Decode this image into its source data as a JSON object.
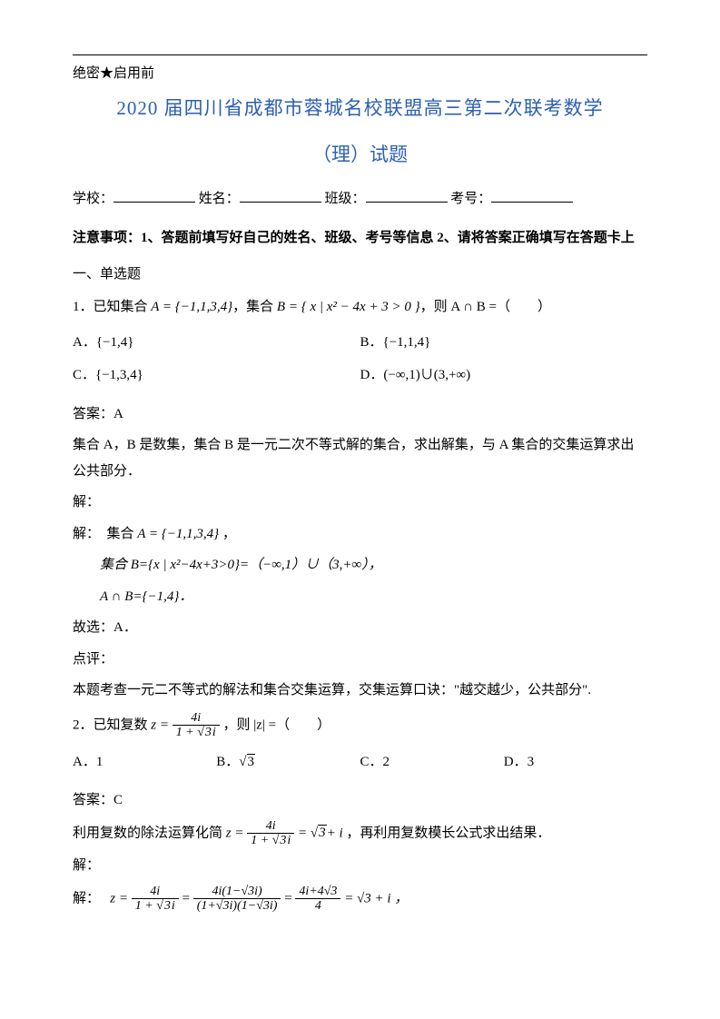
{
  "colors": {
    "title": "#2d5fb3",
    "text": "#000000",
    "background": "#ffffff"
  },
  "header": {
    "secret": "绝密★启用前",
    "title": "2020 届四川省成都市蓉城名校联盟高三第二次联考数学",
    "subtitle": "（理）试题"
  },
  "info": {
    "school_label": "学校：",
    "name_label": "姓名：",
    "class_label": "班级：",
    "number_label": "考号："
  },
  "notice": "注意事项：1、答题前填写好自己的姓名、班级、考号等信息  2、请将答案正确填写在答题卡上",
  "section1": {
    "heading": "一、单选题"
  },
  "q1": {
    "stem_pre": "1．已知集合 ",
    "setA": "A = {−1,1,3,4}",
    "mid1": "，集合 ",
    "setB": "B = { x | x² − 4x + 3 > 0 }",
    "mid2": "，则 A ∩ B =（　　）",
    "optA": "A．{−1,4}",
    "optB": "B．{−1,1,4}",
    "optC": "C．{−1,3,4}",
    "optD": "D．(−∞,1)∪(3,+∞)",
    "answer": "答案：A",
    "expl1": "集合 A，B 是数集，集合 B 是一元二次不等式解的集合，求出解集，与 A 集合的交集运算求出公共部分．",
    "solve_label": "解：",
    "solve1_pre": "解：　集合 ",
    "solve1_A": "A = {−1,1,3,4}",
    "solve1_post": " ，",
    "solve2": "集合 B={x | x²−4x+3>0}=（−∞,1）∪（3,+∞），",
    "solve3": "A ∩ B={−1,4}．",
    "solve4": "故选：A．",
    "dp_label": "点评：",
    "dp_text": "本题考查一元二不等式的解法和集合交集运算，交集运算口诀：\"越交越少，公共部分\"."
  },
  "q2": {
    "stem_pre": "2．已知复数 ",
    "z_eq": "z =",
    "frac_num": "4i",
    "frac_den_pre": "1 + ",
    "frac_den_sqrt": "3",
    "frac_den_post": "i",
    "stem_post": "，则 |z| =（　　）",
    "optA": "A．1",
    "optB_pre": "B．",
    "optB_sqrt": "3",
    "optC": "C．2",
    "optD": "D．3",
    "answer": "答案：C",
    "expl_pre": "利用复数的除法运算化简 ",
    "expl_eq": "z =",
    "expl_res_pre": "= ",
    "expl_res_sqrt": "3",
    "expl_res_post": "+ i",
    "expl_post": "，再利用复数模长公式求出结果．",
    "solve_label": "解：",
    "solve1_pre": "解：　",
    "step_z": "z =",
    "step2_num": "4i(1−√3i)",
    "step2_den": "(1+√3i)(1−√3i)",
    "step3_num": "4i+4√3",
    "step3_den": "4",
    "step_final": "= √3 + i ，"
  }
}
